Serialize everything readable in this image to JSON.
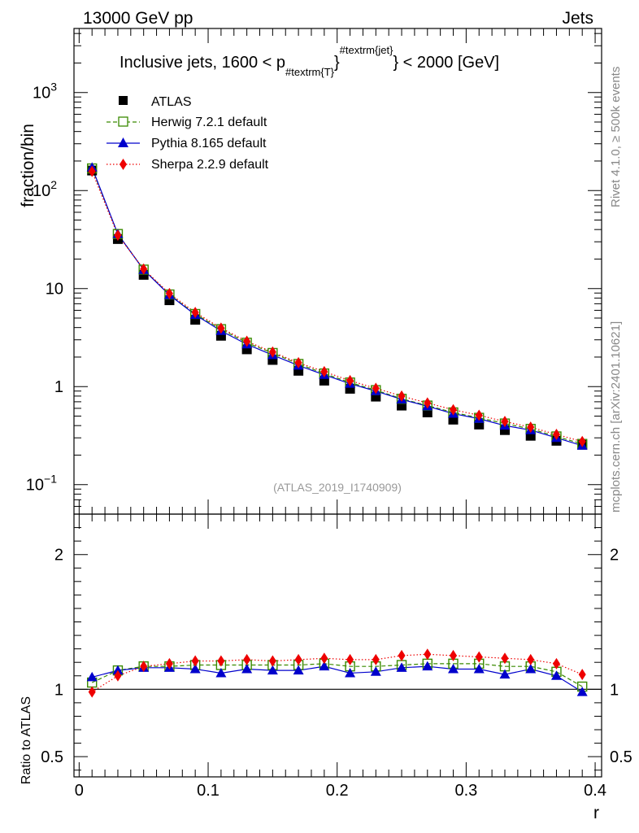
{
  "header": {
    "left": "13000 GeV pp",
    "right": "Jets"
  },
  "side_text": {
    "rivet": "Rivet 4.1.0, ≥ 500k events",
    "source": "mcplots.cern.ch [arXiv:2401.10621]"
  },
  "chart_data": {
    "type": "line",
    "title": "Inclusive jets, 1600 < p_{#textrm{T}}^{#textrm{jet}} < 2000 [GeV]",
    "title_parts": {
      "pre": "Inclusive jets, 1600 < p",
      "sub": "#textrm{T}",
      "sub_close": "}",
      "sup": "#textrm{jet}",
      "post": "} < 2000 [GeV]"
    },
    "analysis_tag": "(ATLAS_2019_I1740909)",
    "xlabel": "r",
    "ylabel": "fraction/bin",
    "ratio_ylabel": "Ratio to ATLAS",
    "xlim": [
      -0.004,
      0.405
    ],
    "ylim": [
      0.05,
      4500
    ],
    "yscale": "log",
    "ratio_ylim": [
      0.35,
      2.3
    ],
    "x_ticks": [
      0,
      0.1,
      0.2,
      0.3,
      0.4
    ],
    "x_tick_labels": [
      "0",
      "0.1",
      "0.2",
      "0.3",
      "0.4"
    ],
    "y_ticks": [
      {
        "value": 0.1,
        "base": "10",
        "exp": "−1"
      },
      {
        "value": 1,
        "base": "1",
        "exp": ""
      },
      {
        "value": 10,
        "base": "10",
        "exp": ""
      },
      {
        "value": 100,
        "base": "10",
        "exp": "2"
      },
      {
        "value": 1000,
        "base": "10",
        "exp": "3"
      }
    ],
    "ratio_ticks": [
      0.5,
      1,
      2
    ],
    "ratio_tick_labels": [
      "0.5",
      "1",
      "2"
    ],
    "x": [
      0.01,
      0.03,
      0.05,
      0.07,
      0.09,
      0.11,
      0.13,
      0.15,
      0.17,
      0.19,
      0.21,
      0.23,
      0.25,
      0.27,
      0.29,
      0.31,
      0.33,
      0.35,
      0.37,
      0.39
    ],
    "series": [
      {
        "name": "ATLAS",
        "color": "#000000",
        "marker": "square-filled",
        "line": "none",
        "values": [
          160,
          32,
          13.8,
          7.6,
          4.8,
          3.3,
          2.4,
          1.87,
          1.45,
          1.15,
          0.95,
          0.79,
          0.64,
          0.545,
          0.46,
          0.41,
          0.36,
          0.315,
          0.28,
          0.255
        ]
      },
      {
        "name": "Herwig 7.2.1 default",
        "color": "#3a8a00",
        "marker": "square-open",
        "line": "dashed",
        "values": [
          168,
          36,
          15.6,
          8.7,
          5.5,
          3.85,
          2.8,
          2.2,
          1.7,
          1.36,
          1.1,
          0.92,
          0.75,
          0.64,
          0.545,
          0.48,
          0.42,
          0.37,
          0.31,
          0.26
        ]
      },
      {
        "name": "Pythia 8.165 default",
        "color": "#0000cc",
        "marker": "triangle",
        "line": "solid",
        "values": [
          172,
          36,
          15.5,
          8.6,
          5.4,
          3.7,
          2.7,
          2.1,
          1.64,
          1.32,
          1.07,
          0.9,
          0.74,
          0.63,
          0.53,
          0.47,
          0.4,
          0.36,
          0.3,
          0.25
        ]
      },
      {
        "name": "Sherpa 2.2.9 default",
        "color": "#ee0000",
        "marker": "diamond",
        "line": "dotted",
        "values": [
          157,
          35,
          15.8,
          8.9,
          5.7,
          3.95,
          2.9,
          2.25,
          1.75,
          1.42,
          1.15,
          0.96,
          0.8,
          0.68,
          0.58,
          0.51,
          0.44,
          0.385,
          0.325,
          0.275
        ]
      }
    ],
    "ratio": [
      {
        "name": "Herwig 7.2.1 default",
        "values": [
          1.05,
          1.14,
          1.17,
          1.17,
          1.18,
          1.18,
          1.18,
          1.18,
          1.18,
          1.19,
          1.17,
          1.17,
          1.18,
          1.19,
          1.19,
          1.19,
          1.17,
          1.17,
          1.13,
          1.02
        ]
      },
      {
        "name": "Pythia 8.165 default",
        "values": [
          1.09,
          1.14,
          1.16,
          1.16,
          1.15,
          1.12,
          1.15,
          1.14,
          1.14,
          1.17,
          1.12,
          1.13,
          1.16,
          1.17,
          1.15,
          1.15,
          1.11,
          1.15,
          1.1,
          0.98
        ]
      },
      {
        "name": "Sherpa 2.2.9 default",
        "values": [
          0.98,
          1.1,
          1.17,
          1.19,
          1.21,
          1.21,
          1.22,
          1.21,
          1.22,
          1.23,
          1.22,
          1.22,
          1.25,
          1.26,
          1.25,
          1.24,
          1.23,
          1.22,
          1.19,
          1.11
        ]
      }
    ]
  }
}
